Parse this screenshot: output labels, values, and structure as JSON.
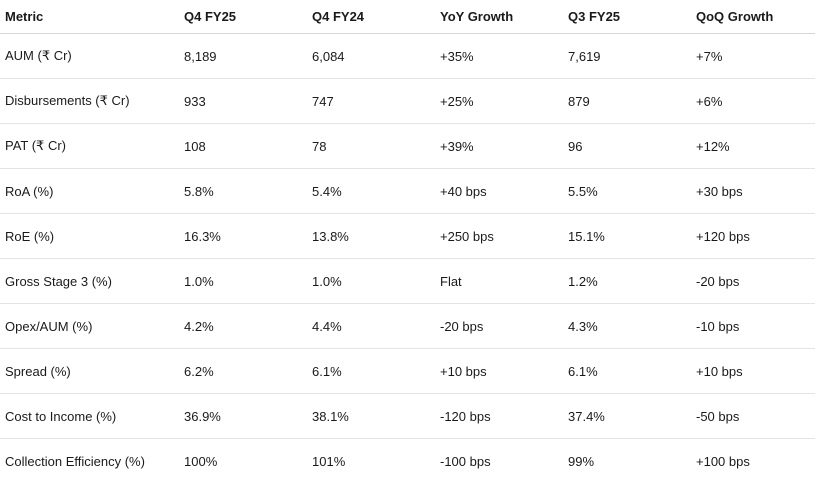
{
  "table": {
    "header": [
      "Metric",
      "Q4 FY25",
      "Q4 FY24",
      "YoY Growth",
      "Q3 FY25",
      "QoQ Growth"
    ],
    "rows": [
      [
        "AUM (₹ Cr)",
        "8,189",
        "6,084",
        "+35%",
        "7,619",
        "+7%"
      ],
      [
        "Disbursements (₹ Cr)",
        "933",
        "747",
        "+25%",
        "879",
        "+6%"
      ],
      [
        "PAT (₹ Cr)",
        "108",
        "78",
        "+39%",
        "96",
        "+12%"
      ],
      [
        "RoA (%)",
        "5.8%",
        "5.4%",
        "+40 bps",
        "5.5%",
        "+30 bps"
      ],
      [
        "RoE (%)",
        "16.3%",
        "13.8%",
        "+250 bps",
        "15.1%",
        "+120 bps"
      ],
      [
        "Gross Stage 3 (%)",
        "1.0%",
        "1.0%",
        "Flat",
        "1.2%",
        "-20 bps"
      ],
      [
        "Opex/AUM (%)",
        "4.2%",
        "4.4%",
        "-20 bps",
        "4.3%",
        "-10 bps"
      ],
      [
        "Spread (%)",
        "6.2%",
        "6.1%",
        "+10 bps",
        "6.1%",
        "+10 bps"
      ],
      [
        "Cost to Income (%)",
        "36.9%",
        "38.1%",
        "-120 bps",
        "37.4%",
        "-50 bps"
      ],
      [
        "Collection Efficiency (%)",
        "100%",
        "101%",
        "-100 bps",
        "99%",
        "+100 bps"
      ]
    ]
  }
}
